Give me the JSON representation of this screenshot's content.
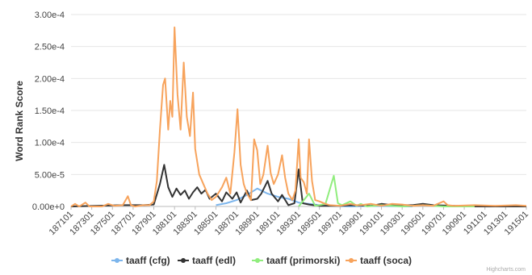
{
  "chart_data": {
    "type": "line",
    "ylabel": "Word Rank Score",
    "xlabel": "",
    "grid": "horizontal",
    "legend_placement": "bottom",
    "ylim": [
      0,
      0.0003
    ],
    "y_ticks": [
      0,
      5e-05,
      0.0001,
      0.00015,
      0.0002,
      0.00025,
      0.0003
    ],
    "y_tick_labels": [
      "0.00e+0",
      "5.00e-5",
      "1.00e-4",
      "1.50e-4",
      "2.00e-4",
      "2.50e-4",
      "3.00e-4"
    ],
    "x_range": [
      187101,
      191501
    ],
    "x_tick_labels": [
      "187101",
      "187301",
      "187501",
      "187701",
      "187901",
      "188101",
      "188301",
      "188501",
      "188701",
      "188901",
      "189101",
      "189301",
      "189501",
      "189701",
      "189901",
      "190101",
      "190301",
      "190501",
      "190701",
      "190901",
      "191101",
      "191301",
      "191501"
    ],
    "credit": "Highcharts.com",
    "series": [
      {
        "name": "taaff (cfg)",
        "color": "#7cb5ec",
        "points": [
          [
            188501,
            2e-06
          ],
          [
            188601,
            5e-06
          ],
          [
            188701,
            1e-05
          ],
          [
            188801,
            1.8e-05
          ],
          [
            188901,
            2.8e-05
          ],
          [
            189001,
            2e-05
          ],
          [
            189101,
            1.5e-05
          ],
          [
            189201,
            1.2e-05
          ],
          [
            189301,
            6e-06
          ],
          [
            189401,
            4e-06
          ],
          [
            189501,
            2e-06
          ],
          [
            189601,
            1e-06
          ],
          [
            189701,
            5e-07
          ],
          [
            189801,
            0
          ],
          [
            190001,
            1e-06
          ],
          [
            190201,
            5e-07
          ],
          [
            190401,
            0
          ]
        ]
      },
      {
        "name": "taaff (edl)",
        "color": "#333333",
        "points": [
          [
            187101,
            0
          ],
          [
            187601,
            2e-06
          ],
          [
            187801,
            2e-06
          ],
          [
            187901,
            3e-06
          ],
          [
            187960,
            3.5e-05
          ],
          [
            188001,
            6.5e-05
          ],
          [
            188040,
            3e-05
          ],
          [
            188080,
            1.5e-05
          ],
          [
            188120,
            2.8e-05
          ],
          [
            188160,
            1.8e-05
          ],
          [
            188201,
            2.5e-05
          ],
          [
            188240,
            1.2e-05
          ],
          [
            188280,
            2.2e-05
          ],
          [
            188320,
            3e-05
          ],
          [
            188360,
            2e-05
          ],
          [
            188401,
            2.6e-05
          ],
          [
            188440,
            1.2e-05
          ],
          [
            188501,
            2e-05
          ],
          [
            188560,
            8e-06
          ],
          [
            188601,
            2.2e-05
          ],
          [
            188660,
            1.2e-05
          ],
          [
            188701,
            2.2e-05
          ],
          [
            188740,
            6e-06
          ],
          [
            188801,
            2.5e-05
          ],
          [
            188840,
            1e-05
          ],
          [
            188901,
            1.2e-05
          ],
          [
            188940,
            2e-05
          ],
          [
            189001,
            4e-05
          ],
          [
            189040,
            2e-05
          ],
          [
            189101,
            8e-06
          ],
          [
            189140,
            1.8e-05
          ],
          [
            189201,
            2e-06
          ],
          [
            189260,
            5e-06
          ],
          [
            189301,
            5.8e-05
          ],
          [
            189340,
            5e-06
          ],
          [
            189401,
            3e-06
          ],
          [
            189501,
            1e-06
          ],
          [
            189701,
            1e-06
          ],
          [
            189801,
            2e-06
          ],
          [
            190001,
            1e-06
          ],
          [
            190101,
            4e-06
          ],
          [
            190201,
            2e-06
          ],
          [
            190401,
            2e-06
          ],
          [
            190501,
            4e-06
          ],
          [
            190601,
            2e-06
          ],
          [
            190801,
            1e-06
          ],
          [
            191001,
            0
          ],
          [
            191501,
            0
          ]
        ]
      },
      {
        "name": "taaff (primorski)",
        "color": "#90ed7d",
        "points": [
          [
            189301,
            0
          ],
          [
            189401,
            2e-05
          ],
          [
            189460,
            1e-06
          ],
          [
            189501,
            2e-06
          ],
          [
            189560,
            4e-06
          ],
          [
            189640,
            4.8e-05
          ],
          [
            189680,
            5e-06
          ],
          [
            189720,
            2e-06
          ],
          [
            189801,
            8e-06
          ],
          [
            189860,
            1e-06
          ],
          [
            189901,
            4e-06
          ],
          [
            189960,
            0
          ],
          [
            190101,
            2e-06
          ],
          [
            190301,
            0
          ],
          [
            190501,
            2e-06
          ],
          [
            190701,
            0
          ],
          [
            191001,
            0
          ]
        ]
      },
      {
        "name": "taaff (soca)",
        "color": "#f7a35c",
        "points": [
          [
            187101,
            0
          ],
          [
            187140,
            4e-06
          ],
          [
            187180,
            0
          ],
          [
            187201,
            2e-06
          ],
          [
            187240,
            6e-06
          ],
          [
            187280,
            0
          ],
          [
            187401,
            0
          ],
          [
            187460,
            4e-06
          ],
          [
            187520,
            1e-06
          ],
          [
            187601,
            2e-06
          ],
          [
            187650,
            1.6e-05
          ],
          [
            187680,
            2e-06
          ],
          [
            187720,
            0
          ],
          [
            187801,
            2e-06
          ],
          [
            187860,
            2e-06
          ],
          [
            187901,
            8e-06
          ],
          [
            187930,
            4e-05
          ],
          [
            187960,
            0.00012
          ],
          [
            187990,
            0.00019
          ],
          [
            188010,
            0.0002
          ],
          [
            188040,
            0.00012
          ],
          [
            188060,
            0.000165
          ],
          [
            188080,
            0.00014
          ],
          [
            188101,
            0.00028
          ],
          [
            188130,
            0.000175
          ],
          [
            188160,
            0.00012
          ],
          [
            188190,
            0.000225
          ],
          [
            188220,
            0.00014
          ],
          [
            188250,
            0.00011
          ],
          [
            188280,
            0.000178
          ],
          [
            188301,
            9e-05
          ],
          [
            188340,
            5e-05
          ],
          [
            188380,
            3.5e-05
          ],
          [
            188420,
            2e-05
          ],
          [
            188460,
            1e-05
          ],
          [
            188501,
            1.5e-05
          ],
          [
            188560,
            3e-05
          ],
          [
            188601,
            4.5e-05
          ],
          [
            188640,
            2e-05
          ],
          [
            188680,
            8.5e-05
          ],
          [
            188710,
            0.000152
          ],
          [
            188740,
            6.5e-05
          ],
          [
            188770,
            3.5e-05
          ],
          [
            188801,
            2e-05
          ],
          [
            188840,
            1e-05
          ],
          [
            188870,
            0.000105
          ],
          [
            188900,
            8.8e-05
          ],
          [
            188930,
            3.5e-05
          ],
          [
            188960,
            5e-05
          ],
          [
            189001,
            9.5e-05
          ],
          [
            189030,
            5.2e-05
          ],
          [
            189060,
            3.5e-05
          ],
          [
            189101,
            5e-05
          ],
          [
            189140,
            8e-05
          ],
          [
            189170,
            4.5e-05
          ],
          [
            189201,
            2e-05
          ],
          [
            189240,
            1e-05
          ],
          [
            189270,
            2.5e-05
          ],
          [
            189301,
            0.000105
          ],
          [
            189320,
            4.5e-05
          ],
          [
            189350,
            3.8e-05
          ],
          [
            189380,
            2e-05
          ],
          [
            189401,
            0.000105
          ],
          [
            189430,
            4e-05
          ],
          [
            189460,
            1e-05
          ],
          [
            189501,
            8e-06
          ],
          [
            189560,
            4e-06
          ],
          [
            189601,
            2e-06
          ],
          [
            189701,
            1e-06
          ],
          [
            189801,
            4e-06
          ],
          [
            189860,
            2e-06
          ],
          [
            189901,
            2e-06
          ],
          [
            190001,
            4e-06
          ],
          [
            190101,
            1e-06
          ],
          [
            190201,
            4e-06
          ],
          [
            190301,
            3e-06
          ],
          [
            190401,
            1e-06
          ],
          [
            190501,
            2e-06
          ],
          [
            190601,
            1e-06
          ],
          [
            190701,
            8e-06
          ],
          [
            190740,
            2e-06
          ],
          [
            190801,
            1e-06
          ],
          [
            191001,
            2e-06
          ],
          [
            191201,
            1e-06
          ],
          [
            191401,
            2e-06
          ],
          [
            191501,
            1e-06
          ]
        ]
      }
    ]
  }
}
